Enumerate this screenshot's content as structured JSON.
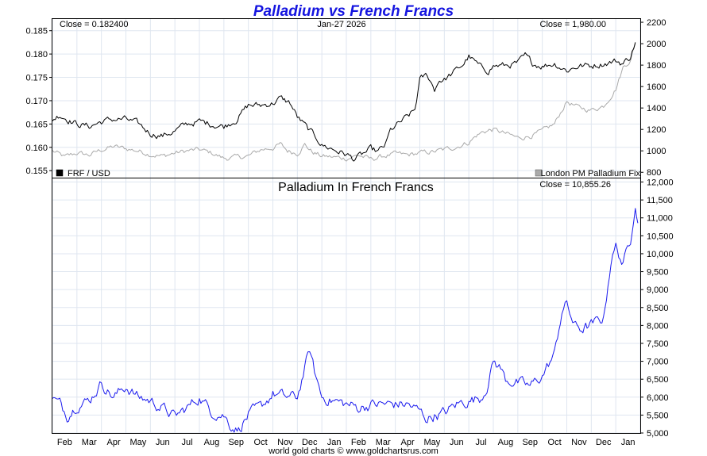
{
  "chart_data": [
    {
      "type": "line",
      "title": "Palladium vs French Francs",
      "date_label": "Jan-27  2026",
      "left_close_label": "Close = 0.182400",
      "right_close_label": "Close = 1,980.00",
      "left_axis": {
        "ylim": [
          0.1535,
          0.1875
        ],
        "ticks": [
          "0.155",
          "0.160",
          "0.165",
          "0.170",
          "0.175",
          "0.180",
          "0.185"
        ]
      },
      "right_axis": {
        "ylim": [
          750,
          2230
        ],
        "ticks": [
          "800",
          "1000",
          "1200",
          "1400",
          "1600",
          "1800",
          "2000",
          "2200"
        ]
      },
      "x_months": [
        "Feb",
        "Mar",
        "Apr",
        "May",
        "Jun",
        "Jul",
        "Aug",
        "Sep",
        "Oct",
        "Nov",
        "Dec",
        "Jan",
        "Feb",
        "Mar",
        "Apr",
        "May",
        "Jun",
        "Jul",
        "Aug",
        "Sep",
        "Oct",
        "Nov",
        "Dec",
        "Jan"
      ],
      "series": [
        {
          "name": "FRF / USD",
          "axis": "left",
          "color": "#000000",
          "anchors": [
            [
              0,
              0.166
            ],
            [
              0.3,
              0.167
            ],
            [
              1,
              0.165
            ],
            [
              1.5,
              0.1645
            ],
            [
              2,
              0.1655
            ],
            [
              2.5,
              0.166
            ],
            [
              3,
              0.166
            ],
            [
              3.5,
              0.165
            ],
            [
              4,
              0.163
            ],
            [
              4.5,
              0.1625
            ],
            [
              5,
              0.1635
            ],
            [
              5.5,
              0.165
            ],
            [
              6,
              0.1655
            ],
            [
              6.5,
              0.165
            ],
            [
              7,
              0.1645
            ],
            [
              7.5,
              0.166
            ],
            [
              8,
              0.169
            ],
            [
              8.5,
              0.169
            ],
            [
              9,
              0.1695
            ],
            [
              9.3,
              0.1705
            ],
            [
              9.7,
              0.1695
            ],
            [
              10,
              0.1665
            ],
            [
              10.5,
              0.1635
            ],
            [
              10.8,
              0.162
            ],
            [
              11,
              0.1605
            ],
            [
              11.5,
              0.1595
            ],
            [
              12,
              0.1585
            ],
            [
              12.3,
              0.1575
            ],
            [
              12.5,
              0.158
            ],
            [
              13,
              0.1595
            ],
            [
              13.3,
              0.159
            ],
            [
              13.6,
              0.1605
            ],
            [
              13.8,
              0.1635
            ],
            [
              14,
              0.1645
            ],
            [
              14.5,
              0.1665
            ],
            [
              14.8,
              0.168
            ],
            [
              15,
              0.1745
            ],
            [
              15.3,
              0.1755
            ],
            [
              15.6,
              0.1725
            ],
            [
              15.8,
              0.1745
            ],
            [
              16,
              0.1745
            ],
            [
              16.5,
              0.1765
            ],
            [
              16.8,
              0.178
            ],
            [
              17,
              0.1795
            ],
            [
              17.5,
              0.177
            ],
            [
              17.8,
              0.1765
            ],
            [
              18,
              0.1775
            ],
            [
              18.5,
              0.1775
            ],
            [
              19,
              0.178
            ],
            [
              19.3,
              0.1795
            ],
            [
              19.6,
              0.178
            ],
            [
              20,
              0.1775
            ],
            [
              20.5,
              0.178
            ],
            [
              21,
              0.1765
            ],
            [
              21.5,
              0.1775
            ],
            [
              22,
              0.1775
            ],
            [
              22.5,
              0.178
            ],
            [
              23,
              0.1785
            ],
            [
              23.3,
              0.178
            ],
            [
              23.6,
              0.1795
            ],
            [
              23.8,
              0.1825
            ]
          ]
        },
        {
          "name": "London PM Palladium Fix",
          "axis": "right",
          "color": "#aaaaaa",
          "anchors": [
            [
              0,
              1000
            ],
            [
              0.5,
              940
            ],
            [
              1,
              980
            ],
            [
              1.5,
              960
            ],
            [
              2,
              1010
            ],
            [
              2.5,
              1040
            ],
            [
              3,
              1020
            ],
            [
              3.5,
              1000
            ],
            [
              4,
              970
            ],
            [
              4.5,
              950
            ],
            [
              5,
              980
            ],
            [
              5.5,
              1000
            ],
            [
              6,
              1010
            ],
            [
              6.5,
              980
            ],
            [
              7,
              930
            ],
            [
              7.5,
              940
            ],
            [
              8,
              950
            ],
            [
              8.5,
              1010
            ],
            [
              9,
              1030
            ],
            [
              9.3,
              1060
            ],
            [
              9.6,
              1000
            ],
            [
              10,
              980
            ],
            [
              10.3,
              1060
            ],
            [
              10.6,
              990
            ],
            [
              11,
              950
            ],
            [
              11.5,
              940
            ],
            [
              12,
              930
            ],
            [
              12.5,
              960
            ],
            [
              13,
              920
            ],
            [
              13.5,
              950
            ],
            [
              14,
              970
            ],
            [
              14.5,
              960
            ],
            [
              15,
              980
            ],
            [
              15.5,
              990
            ],
            [
              16,
              1010
            ],
            [
              16.5,
              1040
            ],
            [
              17,
              1080
            ],
            [
              17.3,
              1140
            ],
            [
              17.6,
              1180
            ],
            [
              18,
              1200
            ],
            [
              18.5,
              1160
            ],
            [
              19,
              1120
            ],
            [
              19.5,
              1140
            ],
            [
              20,
              1180
            ],
            [
              20.5,
              1250
            ],
            [
              20.8,
              1380
            ],
            [
              21,
              1460
            ],
            [
              21.5,
              1400
            ],
            [
              22,
              1380
            ],
            [
              22.5,
              1420
            ],
            [
              23,
              1580
            ],
            [
              23.3,
              1780
            ],
            [
              23.6,
              1850
            ],
            [
              23.8,
              2000
            ]
          ]
        }
      ],
      "legend": [
        {
          "name": "FRF / USD",
          "color": "#000000",
          "position": "bottom-left"
        },
        {
          "name": "London PM Palladium Fix",
          "color": "#aaaaaa",
          "position": "bottom-right"
        }
      ]
    },
    {
      "type": "line",
      "title": "Palladium In French Francs",
      "close_label": "Close = 10,855.26",
      "footer": "world gold charts © www.goldchartsrus.com",
      "right_axis": {
        "ylim": [
          5000,
          12100
        ],
        "ticks": [
          "5,000",
          "5,500",
          "6,000",
          "6,500",
          "7,000",
          "7,500",
          "8,000",
          "8,500",
          "9,000",
          "9,500",
          "10,000",
          "10,500",
          "11,000",
          "11,500",
          "12,000"
        ]
      },
      "series": [
        {
          "name": "Palladium In French Francs",
          "color": "#1a1aee",
          "anchors": [
            [
              0,
              5950
            ],
            [
              0.3,
              5800
            ],
            [
              0.6,
              5500
            ],
            [
              1,
              5800
            ],
            [
              1.5,
              5900
            ],
            [
              1.8,
              6200
            ],
            [
              2,
              6400
            ],
            [
              2.5,
              6000
            ],
            [
              3,
              6300
            ],
            [
              3.5,
              6000
            ],
            [
              4,
              5900
            ],
            [
              4.5,
              5700
            ],
            [
              5,
              5450
            ],
            [
              5.5,
              5700
            ],
            [
              6,
              6000
            ],
            [
              6.5,
              5600
            ],
            [
              7,
              5500
            ],
            [
              7.3,
              5200
            ],
            [
              7.6,
              5100
            ],
            [
              8,
              5500
            ],
            [
              8.5,
              5700
            ],
            [
              9,
              6100
            ],
            [
              9.5,
              6000
            ],
            [
              10,
              6000
            ],
            [
              10.3,
              6800
            ],
            [
              10.5,
              7300
            ],
            [
              10.7,
              6700
            ],
            [
              11,
              6000
            ],
            [
              11.5,
              5900
            ],
            [
              12,
              5800
            ],
            [
              12.5,
              5700
            ],
            [
              13,
              5800
            ],
            [
              13.5,
              5800
            ],
            [
              14,
              5800
            ],
            [
              14.5,
              5800
            ],
            [
              15,
              5600
            ],
            [
              15.3,
              5400
            ],
            [
              15.6,
              5500
            ],
            [
              16,
              5550
            ],
            [
              16.5,
              5800
            ],
            [
              17,
              5900
            ],
            [
              17.5,
              6000
            ],
            [
              17.8,
              6400
            ],
            [
              18,
              7000
            ],
            [
              18.3,
              6800
            ],
            [
              18.5,
              6500
            ],
            [
              19,
              6400
            ],
            [
              19.5,
              6300
            ],
            [
              20,
              6600
            ],
            [
              20.5,
              7200
            ],
            [
              20.8,
              8400
            ],
            [
              21,
              8600
            ],
            [
              21.3,
              8000
            ],
            [
              21.6,
              7900
            ],
            [
              22,
              8000
            ],
            [
              22.5,
              8200
            ],
            [
              22.8,
              9800
            ],
            [
              23,
              10200
            ],
            [
              23.3,
              9700
            ],
            [
              23.6,
              10400
            ],
            [
              23.8,
              11500
            ],
            [
              23.9,
              10855
            ]
          ]
        }
      ]
    }
  ]
}
